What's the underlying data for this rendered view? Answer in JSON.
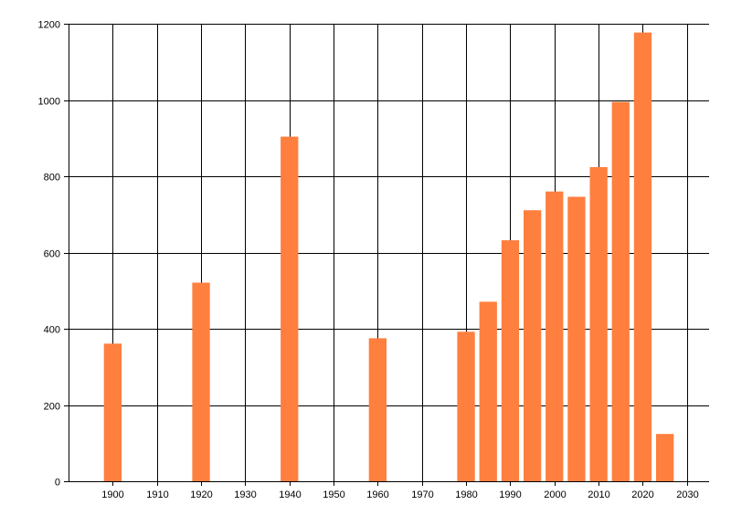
{
  "chart_data": {
    "type": "bar",
    "title": "",
    "xlabel": "",
    "ylabel": "",
    "x": [
      1900,
      1920,
      1940,
      1960,
      1980,
      1985,
      1990,
      1995,
      2000,
      2005,
      2010,
      2015,
      2020,
      2025
    ],
    "values": [
      361,
      521,
      904,
      375,
      392,
      471,
      632,
      711,
      760,
      746,
      824,
      995,
      1177,
      124
    ],
    "xlim": [
      1890,
      2035
    ],
    "ylim": [
      0,
      1200
    ],
    "x_ticks": [
      1900,
      1910,
      1920,
      1930,
      1940,
      1950,
      1960,
      1970,
      1980,
      1990,
      2000,
      2010,
      2020,
      2030
    ],
    "y_ticks": [
      0,
      200,
      400,
      600,
      800,
      1000,
      1200
    ],
    "grid": true,
    "colors": {
      "bar": "#ff7f3f",
      "grid": "#000000",
      "axis": "#000000"
    }
  }
}
